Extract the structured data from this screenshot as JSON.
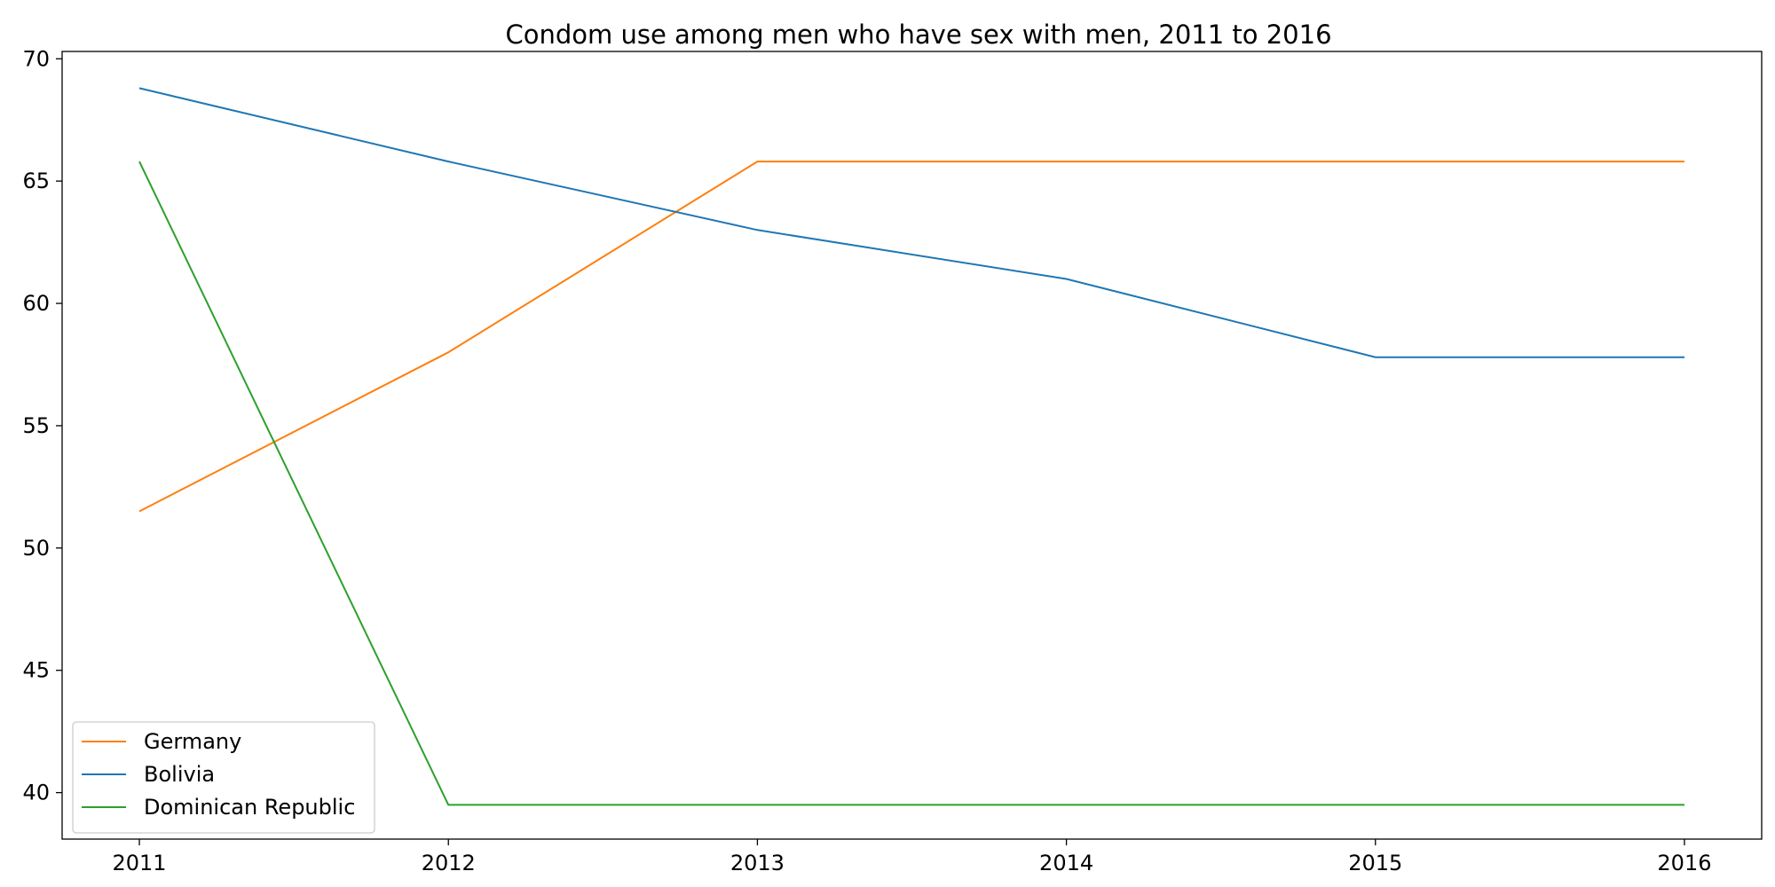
{
  "chart_data": {
    "type": "line",
    "title": "Condom use among men who have sex with men, 2011 to 2016",
    "xlabel": "",
    "ylabel": "",
    "x": [
      2011,
      2012,
      2013,
      2014,
      2015,
      2016
    ],
    "x_tick_labels": [
      "2011",
      "2012",
      "2013",
      "2014",
      "2015",
      "2016"
    ],
    "xlim": [
      2010.75,
      2016.25
    ],
    "ylim": [
      38.1,
      70.3
    ],
    "y_ticks": [
      40,
      45,
      50,
      55,
      60,
      65,
      70
    ],
    "y_tick_labels": [
      "40",
      "45",
      "50",
      "55",
      "60",
      "65",
      "70"
    ],
    "grid": false,
    "legend_position": "lower-left",
    "series": [
      {
        "name": "Germany",
        "color": "#ff7f0e",
        "values": [
          51.5,
          58.0,
          65.8,
          65.8,
          65.8,
          65.8
        ]
      },
      {
        "name": "Bolivia",
        "color": "#1f77b4",
        "values": [
          68.8,
          65.8,
          63.0,
          61.0,
          57.8,
          57.8
        ]
      },
      {
        "name": "Dominican Republic",
        "color": "#2ca02c",
        "values": [
          65.8,
          39.5,
          39.5,
          39.5,
          39.5,
          39.5
        ]
      }
    ]
  }
}
